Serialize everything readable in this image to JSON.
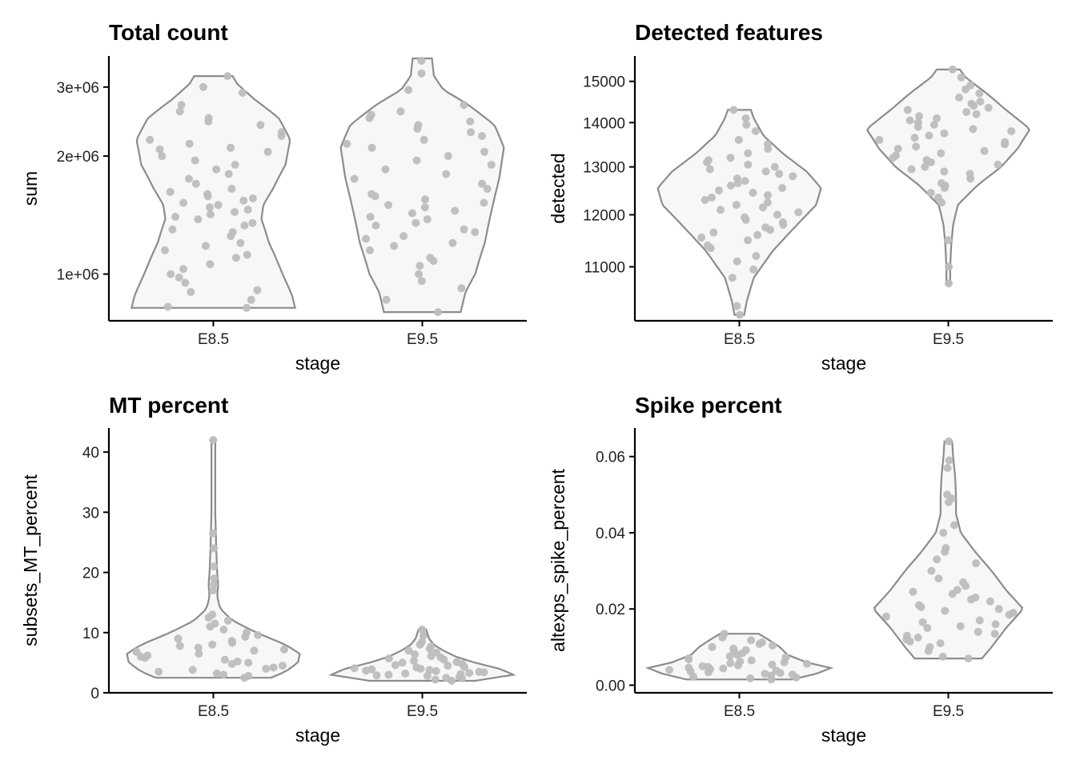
{
  "chart_data": [
    {
      "type": "violin",
      "title": "Total count",
      "xlabel": "stage",
      "ylabel": "sum",
      "scale": "log",
      "categories": [
        "E8.5",
        "E9.5"
      ],
      "yticks": [
        1000000,
        2000000,
        3000000
      ],
      "ytick_labels": [
        "1e+06",
        "2e+06",
        "3e+06"
      ],
      "ylim": [
        760000,
        3600000
      ],
      "violin_color": "#8c8c8c",
      "point_color": "#bdbdbd",
      "groups": [
        {
          "name": "E8.5",
          "min": 820000,
          "max": 3200000,
          "profile": [
            [
              820000,
              0.85
            ],
            [
              880000,
              0.82
            ],
            [
              1000000,
              0.72
            ],
            [
              1200000,
              0.58
            ],
            [
              1380000,
              0.5
            ],
            [
              1500000,
              0.52
            ],
            [
              1650000,
              0.62
            ],
            [
              1900000,
              0.75
            ],
            [
              2200000,
              0.8
            ],
            [
              2500000,
              0.68
            ],
            [
              2800000,
              0.42
            ],
            [
              3050000,
              0.25
            ],
            [
              3200000,
              0.2
            ]
          ],
          "points": [
            820000,
            825000,
            860000,
            900000,
            910000,
            950000,
            980000,
            1000000,
            1030000,
            1060000,
            1100000,
            1120000,
            1150000,
            1180000,
            1200000,
            1250000,
            1280000,
            1300000,
            1330000,
            1350000,
            1380000,
            1400000,
            1420000,
            1440000,
            1460000,
            1480000,
            1500000,
            1520000,
            1540000,
            1560000,
            1580000,
            1600000,
            1620000,
            1650000,
            1700000,
            1750000,
            1800000,
            1850000,
            1900000,
            1950000,
            2000000,
            2050000,
            2080000,
            2100000,
            2150000,
            2200000,
            2250000,
            2300000,
            2400000,
            2450000,
            2500000,
            2600000,
            2700000,
            2900000,
            3000000,
            3200000
          ]
        },
        {
          "name": "E9.5",
          "min": 800000,
          "max": 3550000,
          "profile": [
            [
              800000,
              0.4
            ],
            [
              900000,
              0.45
            ],
            [
              1000000,
              0.55
            ],
            [
              1200000,
              0.65
            ],
            [
              1450000,
              0.72
            ],
            [
              1750000,
              0.8
            ],
            [
              2100000,
              0.85
            ],
            [
              2400000,
              0.75
            ],
            [
              2700000,
              0.48
            ],
            [
              2950000,
              0.22
            ],
            [
              3200000,
              0.12
            ],
            [
              3550000,
              0.1
            ]
          ],
          "points": [
            800000,
            860000,
            920000,
            960000,
            1000000,
            1050000,
            1080000,
            1100000,
            1150000,
            1180000,
            1200000,
            1230000,
            1250000,
            1280000,
            1300000,
            1330000,
            1350000,
            1380000,
            1400000,
            1430000,
            1450000,
            1480000,
            1500000,
            1520000,
            1550000,
            1580000,
            1600000,
            1650000,
            1700000,
            1750000,
            1800000,
            1850000,
            1900000,
            1950000,
            2000000,
            2050000,
            2100000,
            2150000,
            2200000,
            2250000,
            2300000,
            2350000,
            2400000,
            2450000,
            2500000,
            2550000,
            2600000,
            2700000,
            2950000,
            3250000,
            3500000
          ]
        }
      ]
    },
    {
      "type": "violin",
      "title": "Detected features",
      "xlabel": "stage",
      "ylabel": "detected",
      "scale": "log",
      "categories": [
        "E8.5",
        "E9.5"
      ],
      "yticks": [
        11000,
        12000,
        13000,
        14000,
        15000
      ],
      "ytick_labels": [
        "11000",
        "12000",
        "13000",
        "14000",
        "15000"
      ],
      "ylim": [
        10050,
        15650
      ],
      "violin_color": "#8c8c8c",
      "point_color": "#bdbdbd",
      "groups": [
        {
          "name": "E8.5",
          "min": 10150,
          "max": 14300,
          "profile": [
            [
              10150,
              0.05
            ],
            [
              10400,
              0.08
            ],
            [
              10800,
              0.15
            ],
            [
              11300,
              0.35
            ],
            [
              11800,
              0.6
            ],
            [
              12200,
              0.8
            ],
            [
              12550,
              0.85
            ],
            [
              12900,
              0.7
            ],
            [
              13300,
              0.45
            ],
            [
              13700,
              0.25
            ],
            [
              14100,
              0.15
            ],
            [
              14300,
              0.12
            ]
          ],
          "points": [
            10150,
            10300,
            10800,
            10950,
            11100,
            11200,
            11350,
            11400,
            11500,
            11550,
            11600,
            11650,
            11700,
            11750,
            11800,
            11850,
            11900,
            11950,
            12000,
            12050,
            12100,
            12150,
            12200,
            12250,
            12300,
            12350,
            12400,
            12450,
            12500,
            12550,
            12600,
            12650,
            12700,
            12750,
            12800,
            12850,
            12900,
            12950,
            13000,
            13050,
            13100,
            13150,
            13200,
            13300,
            13400,
            13500,
            13600,
            13800,
            13950,
            14100,
            14300
          ]
        },
        {
          "name": "E9.5",
          "min": 10700,
          "max": 15300,
          "profile": [
            [
              10700,
              0.02
            ],
            [
              11000,
              0.02
            ],
            [
              11400,
              0.03
            ],
            [
              11800,
              0.05
            ],
            [
              12200,
              0.1
            ],
            [
              12600,
              0.3
            ],
            [
              13000,
              0.55
            ],
            [
              13400,
              0.72
            ],
            [
              13850,
              0.85
            ],
            [
              14300,
              0.6
            ],
            [
              14700,
              0.4
            ],
            [
              15100,
              0.18
            ],
            [
              15300,
              0.12
            ]
          ],
          "points": [
            10700,
            11000,
            11500,
            12250,
            12350,
            12450,
            12550,
            12600,
            12650,
            12750,
            12850,
            12900,
            12950,
            13000,
            13050,
            13100,
            13150,
            13200,
            13250,
            13300,
            13350,
            13400,
            13450,
            13500,
            13550,
            13600,
            13650,
            13700,
            13750,
            13800,
            13850,
            13900,
            13950,
            14000,
            14050,
            14100,
            14150,
            14200,
            14250,
            14300,
            14350,
            14400,
            14450,
            14500,
            14600,
            14700,
            14800,
            14900,
            15100,
            15300
          ]
        }
      ]
    },
    {
      "type": "violin",
      "title": "MT percent",
      "xlabel": "stage",
      "ylabel": "subsets_MT_percent",
      "scale": "linear",
      "categories": [
        "E8.5",
        "E9.5"
      ],
      "yticks": [
        0,
        10,
        20,
        30,
        40
      ],
      "ytick_labels": [
        "0",
        "10",
        "20",
        "30",
        "40"
      ],
      "ylim": [
        0,
        44
      ],
      "violin_color": "#8c8c8c",
      "point_color": "#bdbdbd",
      "groups": [
        {
          "name": "E8.5",
          "min": 2.5,
          "max": 42,
          "profile": [
            [
              2.5,
              0.6
            ],
            [
              3.5,
              0.75
            ],
            [
              5,
              0.88
            ],
            [
              6.5,
              0.9
            ],
            [
              8,
              0.75
            ],
            [
              10,
              0.45
            ],
            [
              12,
              0.2
            ],
            [
              14,
              0.07
            ],
            [
              16,
              0.04
            ],
            [
              18,
              0.05
            ],
            [
              20,
              0.04
            ],
            [
              24,
              0.03
            ],
            [
              30,
              0.02
            ],
            [
              36,
              0.02
            ],
            [
              42,
              0.02
            ]
          ],
          "points": [
            2.5,
            2.8,
            3,
            3.2,
            3.5,
            3.8,
            4,
            4.2,
            4.5,
            4.8,
            5,
            5.2,
            5.5,
            5.8,
            6,
            6.2,
            6.5,
            6.8,
            7,
            7.2,
            7.5,
            7.8,
            8,
            8.3,
            8.6,
            9,
            9.3,
            9.6,
            10,
            10.5,
            11,
            11.5,
            12,
            12.5,
            13,
            17,
            18,
            19,
            21,
            24,
            26.5,
            42
          ]
        },
        {
          "name": "E9.5",
          "min": 2,
          "max": 10.5,
          "profile": [
            [
              2,
              0.55
            ],
            [
              3,
              0.95
            ],
            [
              4,
              0.8
            ],
            [
              5,
              0.55
            ],
            [
              6,
              0.35
            ],
            [
              7,
              0.22
            ],
            [
              8,
              0.12
            ],
            [
              9,
              0.07
            ],
            [
              10,
              0.05
            ],
            [
              10.5,
              0.04
            ]
          ],
          "points": [
            2,
            2.2,
            2.4,
            2.5,
            2.6,
            2.8,
            2.9,
            3,
            3.1,
            3.2,
            3.3,
            3.4,
            3.5,
            3.6,
            3.7,
            3.8,
            3.9,
            4,
            4.1,
            4.2,
            4.3,
            4.5,
            4.6,
            4.8,
            5,
            5.1,
            5.3,
            5.5,
            5.7,
            5.9,
            6.1,
            6.4,
            6.7,
            7,
            7.3,
            7.7,
            8,
            8.5,
            9.5,
            10.5
          ]
        }
      ]
    },
    {
      "type": "violin",
      "title": "Spike percent",
      "xlabel": "stage",
      "ylabel": "altexps_spike_percent",
      "scale": "linear",
      "categories": [
        "E8.5",
        "E9.5"
      ],
      "yticks": [
        0,
        0.02,
        0.04,
        0.06
      ],
      "ytick_labels": [
        "0.00",
        "0.02",
        "0.04",
        "0.06"
      ],
      "ylim": [
        -0.002,
        0.0675
      ],
      "violin_color": "#8c8c8c",
      "point_color": "#bdbdbd",
      "groups": [
        {
          "name": "E8.5",
          "min": 0.0015,
          "max": 0.0135,
          "profile": [
            [
              0.0015,
              0.55
            ],
            [
              0.003,
              0.8
            ],
            [
              0.0045,
              0.95
            ],
            [
              0.006,
              0.7
            ],
            [
              0.008,
              0.5
            ],
            [
              0.01,
              0.42
            ],
            [
              0.012,
              0.3
            ],
            [
              0.0135,
              0.2
            ]
          ],
          "points": [
            0.0015,
            0.0018,
            0.002,
            0.0022,
            0.0025,
            0.0028,
            0.003,
            0.0032,
            0.0034,
            0.0036,
            0.0038,
            0.004,
            0.0042,
            0.0044,
            0.0046,
            0.0048,
            0.005,
            0.0052,
            0.0054,
            0.0056,
            0.0058,
            0.006,
            0.0062,
            0.0065,
            0.0068,
            0.007,
            0.0073,
            0.0076,
            0.008,
            0.0084,
            0.0088,
            0.0092,
            0.0096,
            0.01,
            0.0104,
            0.0108,
            0.0112,
            0.0118,
            0.0125,
            0.0135
          ]
        },
        {
          "name": "E9.5",
          "min": 0.007,
          "max": 0.064,
          "profile": [
            [
              0.007,
              0.35
            ],
            [
              0.01,
              0.45
            ],
            [
              0.015,
              0.6
            ],
            [
              0.02,
              0.78
            ],
            [
              0.025,
              0.6
            ],
            [
              0.03,
              0.45
            ],
            [
              0.035,
              0.28
            ],
            [
              0.04,
              0.13
            ],
            [
              0.045,
              0.08
            ],
            [
              0.05,
              0.08
            ],
            [
              0.055,
              0.07
            ],
            [
              0.06,
              0.05
            ],
            [
              0.064,
              0.04
            ]
          ],
          "points": [
            0.007,
            0.0075,
            0.009,
            0.01,
            0.011,
            0.0115,
            0.012,
            0.0125,
            0.013,
            0.0135,
            0.014,
            0.015,
            0.0155,
            0.016,
            0.0165,
            0.017,
            0.018,
            0.0185,
            0.019,
            0.0195,
            0.02,
            0.0205,
            0.021,
            0.022,
            0.0225,
            0.023,
            0.024,
            0.0245,
            0.025,
            0.026,
            0.027,
            0.028,
            0.03,
            0.032,
            0.033,
            0.035,
            0.036,
            0.04,
            0.042,
            0.048,
            0.049,
            0.05,
            0.057,
            0.059,
            0.064
          ]
        }
      ]
    }
  ]
}
